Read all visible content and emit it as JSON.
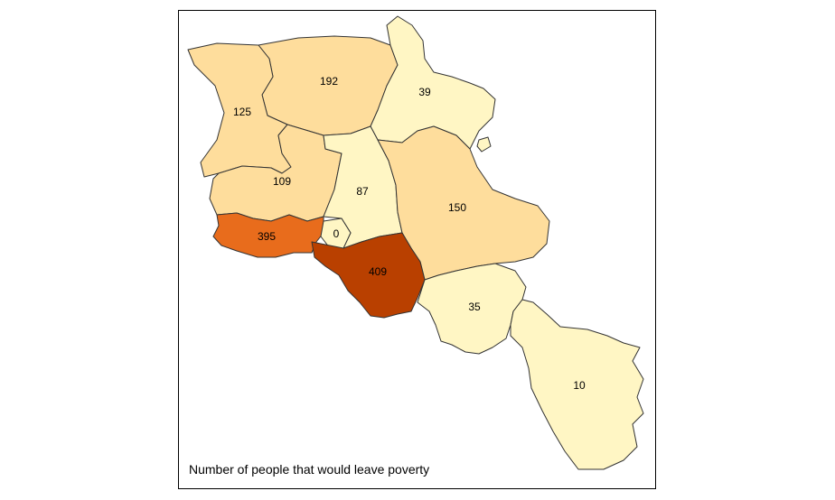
{
  "map": {
    "caption": "Number of people that would leave poverty",
    "regions": [
      {
        "id": "northwest",
        "value": "125",
        "color": "#fedd9c"
      },
      {
        "id": "north",
        "value": "192",
        "color": "#fedd9c"
      },
      {
        "id": "northeast",
        "value": "39",
        "color": "#fff6c4"
      },
      {
        "id": "west",
        "value": "109",
        "color": "#fedd9c"
      },
      {
        "id": "center",
        "value": "87",
        "color": "#fff6c4"
      },
      {
        "id": "east",
        "value": "150",
        "color": "#fedd9c"
      },
      {
        "id": "southwest",
        "value": "395",
        "color": "#e86c1c"
      },
      {
        "id": "capital",
        "value": "0",
        "color": "#fff6c4"
      },
      {
        "id": "south-center",
        "value": "409",
        "color": "#b94000"
      },
      {
        "id": "south",
        "value": "35",
        "color": "#fff6c4"
      },
      {
        "id": "far-south",
        "value": "10",
        "color": "#fff6c4"
      }
    ]
  }
}
